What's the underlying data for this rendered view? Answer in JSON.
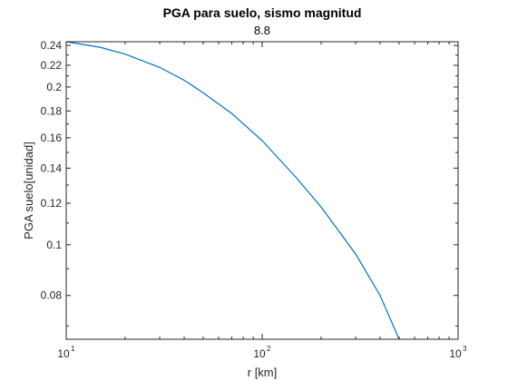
{
  "chart_data": {
    "type": "line",
    "title": "PGA para suelo, sismo magnitud",
    "subtitle": "8.8",
    "xlabel": "r [km]",
    "ylabel": "PGA suelo[unidad]",
    "xscale": "log",
    "yscale": "log",
    "xlim": [
      10,
      1000
    ],
    "ylim": [
      0.066,
      0.244
    ],
    "grid": false,
    "x_ticks": [
      {
        "value": 10,
        "base": "10",
        "exp": "1"
      },
      {
        "value": 100,
        "base": "10",
        "exp": "2"
      },
      {
        "value": 1000,
        "base": "10",
        "exp": "3"
      }
    ],
    "y_ticks": [
      0.08,
      0.1,
      0.12,
      0.14,
      0.16,
      0.18,
      0.2,
      0.22,
      0.24
    ],
    "y_tick_labels": [
      "0.08",
      "0.1",
      "0.12",
      "0.14",
      "0.16",
      "0.18",
      "0.2",
      "0.22",
      "0.24"
    ],
    "series": [
      {
        "color": "#0072BD",
        "x": [
          10,
          15,
          20,
          30,
          40,
          50,
          70,
          100,
          150,
          200,
          300,
          400,
          500
        ],
        "y": [
          0.244,
          0.238,
          0.231,
          0.218,
          0.206,
          0.195,
          0.178,
          0.158,
          0.134,
          0.118,
          0.096,
          0.08,
          0.066
        ]
      }
    ]
  }
}
